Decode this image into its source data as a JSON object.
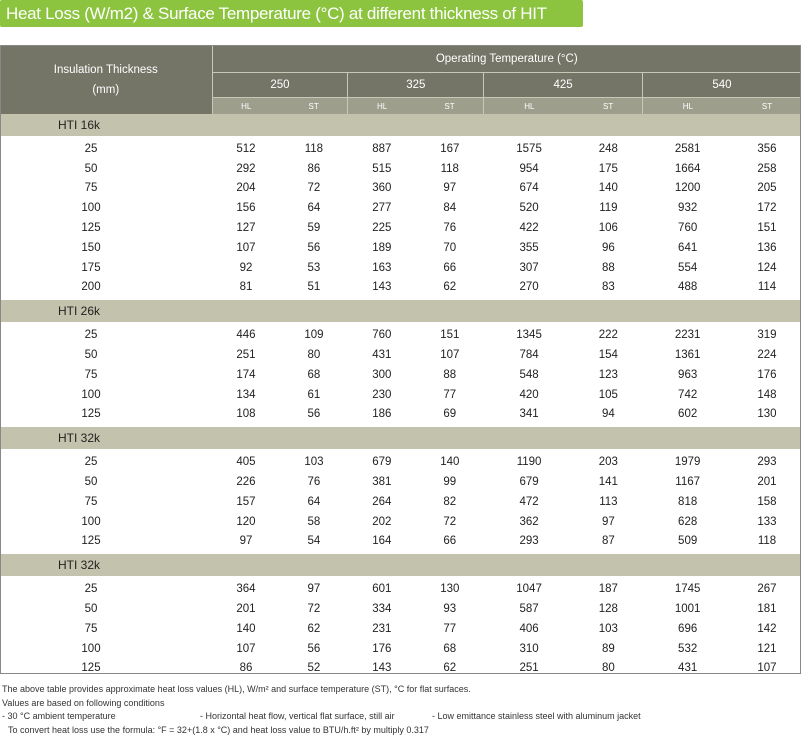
{
  "title": "Heat Loss (W/m2) & Surface Temperature (°C) at different thickness of HIT",
  "header": {
    "lead_line1": "Insulation Thickness",
    "lead_line2": "(mm)",
    "operating": "Operating Temperature (°C)",
    "temps": [
      "250",
      "325",
      "425",
      "540"
    ],
    "hl": "HL",
    "st": "ST"
  },
  "groups": [
    {
      "name": "HTI  16k",
      "rows": [
        [
          "25",
          "512",
          "118",
          "887",
          "167",
          "1575",
          "248",
          "2581",
          "356"
        ],
        [
          "50",
          "292",
          "86",
          "515",
          "118",
          "954",
          "175",
          "1664",
          "258"
        ],
        [
          "75",
          "204",
          "72",
          "360",
          "97",
          "674",
          "140",
          "1200",
          "205"
        ],
        [
          "100",
          "156",
          "64",
          "277",
          "84",
          "520",
          "119",
          "932",
          "172"
        ],
        [
          "125",
          "127",
          "59",
          "225",
          "76",
          "422",
          "106",
          "760",
          "151"
        ],
        [
          "150",
          "107",
          "56",
          "189",
          "70",
          "355",
          "96",
          "641",
          "136"
        ],
        [
          "175",
          "92",
          "53",
          "163",
          "66",
          "307",
          "88",
          "554",
          "124"
        ],
        [
          "200",
          "81",
          "51",
          "143",
          "62",
          "270",
          "83",
          "488",
          "114"
        ]
      ]
    },
    {
      "name": "HTI  26k",
      "rows": [
        [
          "25",
          "446",
          "109",
          "760",
          "151",
          "1345",
          "222",
          "2231",
          "319"
        ],
        [
          "50",
          "251",
          "80",
          "431",
          "107",
          "784",
          "154",
          "1361",
          "224"
        ],
        [
          "75",
          "174",
          "68",
          "300",
          "88",
          "548",
          "123",
          "963",
          "176"
        ],
        [
          "100",
          "134",
          "61",
          "230",
          "77",
          "420",
          "105",
          "742",
          "148"
        ],
        [
          "125",
          "108",
          "56",
          "186",
          "69",
          "341",
          "94",
          "602",
          "130"
        ]
      ]
    },
    {
      "name": "HTI  32k",
      "rows": [
        [
          "25",
          "405",
          "103",
          "679",
          "140",
          "1190",
          "203",
          "1979",
          "293"
        ],
        [
          "50",
          "226",
          "76",
          "381",
          "99",
          "679",
          "141",
          "1167",
          "201"
        ],
        [
          "75",
          "157",
          "64",
          "264",
          "82",
          "472",
          "113",
          "818",
          "158"
        ],
        [
          "100",
          "120",
          "58",
          "202",
          "72",
          "362",
          "97",
          "628",
          "133"
        ],
        [
          "125",
          "97",
          "54",
          "164",
          "66",
          "293",
          "87",
          "509",
          "118"
        ]
      ]
    },
    {
      "name": "HTI  32k",
      "rows": [
        [
          "25",
          "364",
          "97",
          "601",
          "130",
          "1047",
          "187",
          "1745",
          "267"
        ],
        [
          "50",
          "201",
          "72",
          "334",
          "93",
          "587",
          "128",
          "1001",
          "181"
        ],
        [
          "75",
          "140",
          "62",
          "231",
          "77",
          "406",
          "103",
          "696",
          "142"
        ],
        [
          "100",
          "107",
          "56",
          "176",
          "68",
          "310",
          "89",
          "532",
          "121"
        ],
        [
          "125",
          "86",
          "52",
          "143",
          "62",
          "251",
          "80",
          "431",
          "107"
        ]
      ]
    }
  ],
  "notes": {
    "line1": "The above table provides approximate heat loss values (HL), W/m² and surface temperature (ST), °C for flat surfaces.",
    "line2": "Values are based on following conditions",
    "cond1": "- 30 °C ambient temperature",
    "cond2": "- Horizontal heat flow, vertical flat surface, still air",
    "cond3": "- Low emittance stainless steel with aluminum jacket",
    "line4": "To convert heat loss use the formula: °F = 32+(1.8 x °C) and heat loss value to BTU/h.ft² by multiply 0.317"
  }
}
